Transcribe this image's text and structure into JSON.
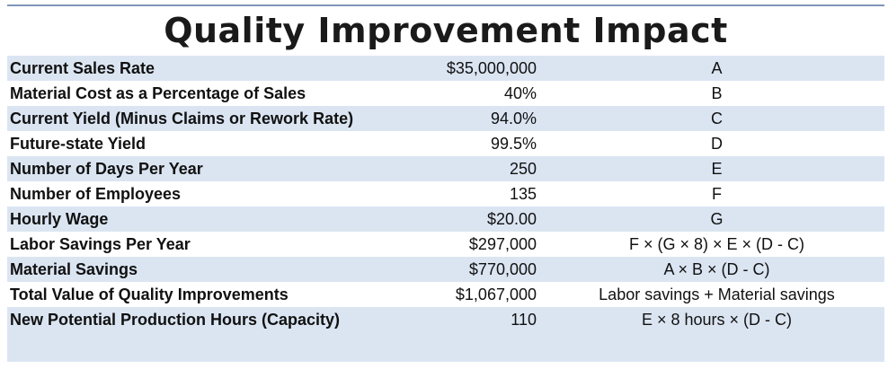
{
  "title": "Quality Improvement Impact",
  "rows": [
    {
      "label": "Current Sales Rate",
      "value": "$35,000,000",
      "formula": "A"
    },
    {
      "label": "Material Cost as a Percentage of Sales",
      "value": "40%",
      "formula": "B"
    },
    {
      "label": "Current Yield (Minus Claims or Rework Rate)",
      "value": "94.0%",
      "formula": "C"
    },
    {
      "label": "Future-state Yield",
      "value": "99.5%",
      "formula": "D"
    },
    {
      "label": "Number of Days Per Year",
      "value": "250",
      "formula": "E"
    },
    {
      "label": "Number of Employees",
      "value": "135",
      "formula": "F"
    },
    {
      "label": "Hourly Wage",
      "value": "$20.00",
      "formula": "G"
    },
    {
      "label": "Labor Savings Per Year",
      "value": "$297,000",
      "formula": "F × (G × 8) × E × (D - C)"
    },
    {
      "label": "Material Savings",
      "value": "$770,000",
      "formula": "A × B × (D - C)"
    },
    {
      "label": "Total Value of Quality Improvements",
      "value": "$1,067,000",
      "formula": "Labor savings + Material savings"
    },
    {
      "label": "New Potential Production Hours (Capacity)",
      "value": "110",
      "formula": "E × 8 hours × (D - C)"
    }
  ],
  "colors": {
    "row_shade": "#dbe5f2",
    "row_plain": "#ffffff",
    "rule": "#7f96b8"
  }
}
